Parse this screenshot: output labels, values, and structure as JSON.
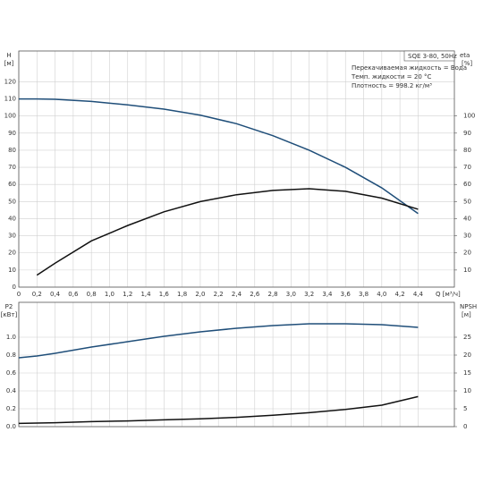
{
  "chart_data": [
    {
      "type": "line",
      "xlabel": "Q [м³/ч]",
      "ylabel": "[м]",
      "y2label": "[%]",
      "annotations": [
        "SQE 3-80, 50Hz",
        "Перекачиваемая жидкость = Вода",
        "Темп. жидкости = 20 °C",
        "Плотность = 998.2 кг/м³"
      ],
      "x": [
        0,
        0.2,
        0.4,
        0.8,
        1.2,
        1.6,
        2.0,
        2.4,
        2.8,
        3.2,
        3.6,
        4.0,
        4.4
      ],
      "series": [
        {
          "name": "H",
          "color": "#1f4e79",
          "values": [
            110,
            110,
            109.8,
            108.5,
            106.5,
            104,
            100.5,
            95.5,
            88.5,
            80,
            70,
            58,
            43
          ]
        },
        {
          "name": "eta",
          "color": "#111111",
          "axis": "y2",
          "values": [
            null,
            7,
            14,
            27,
            36,
            44,
            50,
            54,
            56.5,
            57.5,
            56,
            52,
            45.5
          ]
        }
      ],
      "xlim": [
        0,
        4.8
      ],
      "xticks": [
        0,
        {
          "value": 0.2,
          "label": "0,2"
        },
        {
          "value": 0.4,
          "label": "0,4"
        },
        {
          "value": 0.6,
          "label": "0,6"
        },
        {
          "value": 0.8,
          "label": "0,8"
        },
        {
          "value": 1,
          "label": "1,0"
        },
        {
          "value": 1.2,
          "label": "1,2"
        },
        {
          "value": 1.4,
          "label": "1,4"
        },
        {
          "value": 1.6,
          "label": "1,6"
        },
        {
          "value": 1.8,
          "label": "1,8"
        },
        {
          "value": 2,
          "label": "2,0"
        },
        {
          "value": 2.2,
          "label": "2,2"
        },
        {
          "value": 2.4,
          "label": "2,4"
        },
        {
          "value": 2.6,
          "label": "2,6"
        },
        {
          "value": 2.8,
          "label": "2,8"
        },
        {
          "value": 3,
          "label": "3,0"
        },
        {
          "value": 3.2,
          "label": "3,2"
        },
        {
          "value": 3.4,
          "label": "3,4"
        },
        {
          "value": 3.6,
          "label": "3,6"
        },
        {
          "value": 3.8,
          "label": "3,8"
        },
        {
          "value": 4,
          "label": "4,0"
        },
        {
          "value": 4.2,
          "label": "4,2"
        },
        {
          "value": 4.4,
          "label": "4,4"
        }
      ],
      "ylim": [
        0,
        138
      ],
      "yticks": [
        0,
        10,
        20,
        30,
        40,
        50,
        60,
        70,
        80,
        90,
        100,
        110,
        120
      ],
      "y2lim": [
        0,
        138
      ],
      "y2ticks": [
        10,
        20,
        30,
        40,
        50,
        60,
        70,
        80,
        90,
        100
      ],
      "grid": true
    },
    {
      "type": "line",
      "ylabel": "[кВт]",
      "y2label": "[м]",
      "x": [
        0,
        0.2,
        0.4,
        0.8,
        1.2,
        1.6,
        2.0,
        2.4,
        2.8,
        3.2,
        3.6,
        4.0,
        4.4
      ],
      "series": [
        {
          "name": "P2",
          "color": "#1f4e79",
          "values": [
            0.77,
            0.79,
            0.82,
            0.89,
            0.95,
            1.01,
            1.06,
            1.1,
            1.13,
            1.15,
            1.15,
            1.14,
            1.11
          ]
        },
        {
          "name": "NPSH",
          "color": "#111111",
          "axis": "y2",
          "values": [
            0.9,
            1.0,
            1.1,
            1.4,
            1.6,
            1.9,
            2.2,
            2.6,
            3.2,
            3.9,
            4.8,
            6.0,
            8.4
          ]
        }
      ],
      "xlim": [
        0,
        4.8
      ],
      "ylim": [
        0,
        1.39
      ],
      "yticks": [
        {
          "value": 0,
          "label": "0.0"
        },
        0.2,
        0.4,
        0.6,
        0.8,
        {
          "value": 1,
          "label": "1.0"
        }
      ],
      "y2lim": [
        0,
        34.75
      ],
      "y2ticks": [
        0,
        5,
        10,
        15,
        20,
        25
      ],
      "grid": true
    }
  ]
}
